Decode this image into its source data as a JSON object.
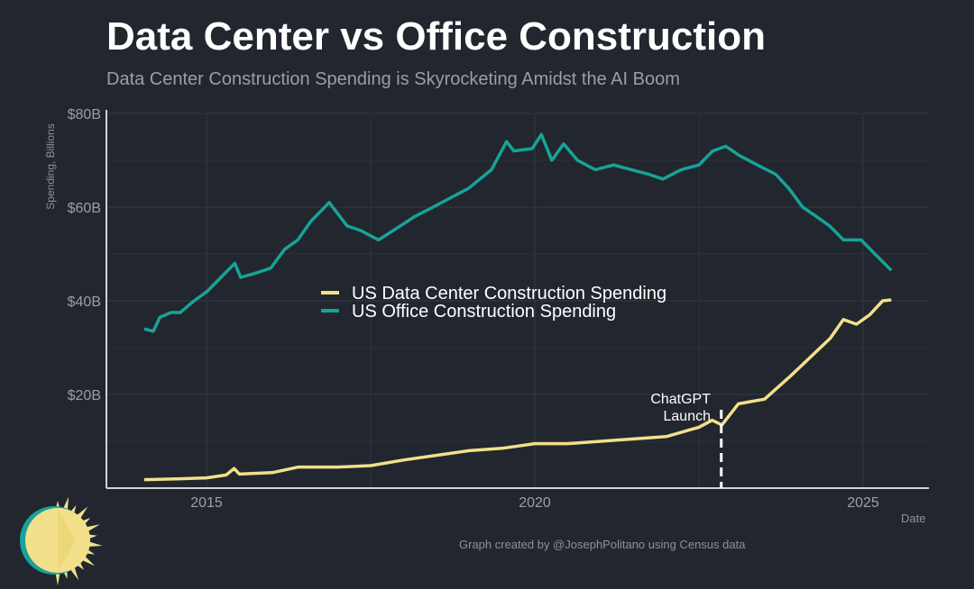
{
  "chart_data": {
    "type": "line",
    "title": "Data Center vs Office Construction",
    "subtitle": "Data Center Construction Spending is Skyrocketing Amidst the AI Boom",
    "xlabel": "Date",
    "ylabel": "Spending, Billions",
    "xlim": [
      2014,
      2025.7
    ],
    "ylim": [
      0,
      80
    ],
    "x_ticks": [
      2015,
      2020,
      2025
    ],
    "x_tick_labels": [
      "2015",
      "2020",
      "2025"
    ],
    "y_ticks": [
      20,
      40,
      60,
      80
    ],
    "y_tick_labels": [
      "$20B",
      "$40B",
      "$60B",
      "$80B"
    ],
    "grid": true,
    "legend_position": "center",
    "series": [
      {
        "name": "US Data Center Construction Spending",
        "color": "#f2e08a",
        "x": [
          2014.05,
          2014.6,
          2015.0,
          2015.3,
          2015.42,
          2015.5,
          2016.0,
          2016.4,
          2017.0,
          2017.5,
          2018.0,
          2018.5,
          2019.0,
          2019.5,
          2020.0,
          2020.5,
          2021.0,
          2021.5,
          2022.0,
          2022.5,
          2022.7,
          2022.85,
          2023.1,
          2023.5,
          2023.9,
          2024.2,
          2024.5,
          2024.7,
          2024.9,
          2025.1,
          2025.3,
          2025.43
        ],
        "y": [
          1.8,
          2.0,
          2.2,
          2.8,
          4.2,
          3.0,
          3.3,
          4.5,
          4.5,
          4.8,
          6,
          7,
          8,
          8.5,
          9.5,
          9.5,
          10,
          10.5,
          11,
          13,
          14.5,
          13.5,
          18,
          19,
          24,
          28,
          32,
          36,
          35,
          37,
          40,
          40.2
        ]
      },
      {
        "name": "US Office Construction Spending",
        "color": "#17a398",
        "x": [
          2014.05,
          2014.19,
          2014.29,
          2014.46,
          2014.6,
          2014.81,
          2015.01,
          2015.22,
          2015.43,
          2015.52,
          2015.77,
          2015.98,
          2016.19,
          2016.39,
          2016.59,
          2016.87,
          2017.14,
          2017.35,
          2017.62,
          2017.9,
          2018.17,
          2018.45,
          2018.72,
          2018.99,
          2019.34,
          2019.57,
          2019.68,
          2019.96,
          2020.1,
          2020.26,
          2020.44,
          2020.65,
          2020.92,
          2021.2,
          2021.47,
          2021.74,
          2021.95,
          2022.23,
          2022.5,
          2022.71,
          2022.91,
          2023.12,
          2023.39,
          2023.67,
          2023.87,
          2024.08,
          2024.29,
          2024.49,
          2024.7,
          2024.97,
          2025.18,
          2025.43
        ],
        "y": [
          34,
          33.5,
          36.5,
          37.5,
          37.5,
          40,
          42,
          45,
          48,
          45,
          46,
          47,
          51,
          53,
          57,
          61,
          56,
          55,
          53,
          55.5,
          58,
          60,
          62,
          64,
          68,
          74,
          72,
          72.5,
          75.5,
          70,
          73.5,
          70,
          68,
          69,
          68,
          67,
          66,
          68,
          69,
          72,
          73,
          71,
          69,
          67,
          64,
          60,
          58,
          56,
          53,
          53,
          50,
          46.5
        ]
      }
    ],
    "annotations": [
      {
        "text_line1": "ChatGPT",
        "text_line2": "Launch",
        "x": 2022.84
      }
    ]
  },
  "credit": "Graph created by @JosephPolitano using Census data"
}
